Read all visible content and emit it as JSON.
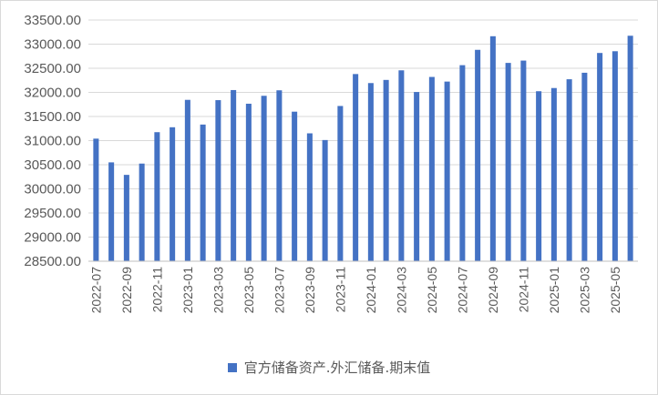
{
  "chart_data": {
    "type": "bar",
    "categories": [
      "2022-07",
      "2022-08",
      "2022-09",
      "2022-10",
      "2022-11",
      "2022-12",
      "2023-01",
      "2023-02",
      "2023-03",
      "2023-04",
      "2023-05",
      "2023-06",
      "2023-07",
      "2023-08",
      "2023-09",
      "2023-10",
      "2023-11",
      "2023-12",
      "2024-01",
      "2024-02",
      "2024-03",
      "2024-04",
      "2024-05",
      "2024-06",
      "2024-07",
      "2024-08",
      "2024-09",
      "2024-10",
      "2024-11",
      "2024-12",
      "2025-01",
      "2025-02",
      "2025-03",
      "2025-04",
      "2025-05",
      "2025-06"
    ],
    "x_tick_labels": [
      "2022-07",
      "2022-09",
      "2022-11",
      "2023-01",
      "2023-03",
      "2023-05",
      "2023-07",
      "2023-09",
      "2023-11",
      "2024-01",
      "2024-03",
      "2024-05",
      "2024-07",
      "2024-09",
      "2024-11",
      "2025-01",
      "2025-03",
      "2025-05"
    ],
    "series": [
      {
        "name": "官方储备资产:外汇储备:期末值",
        "color": "#4472c4",
        "values": [
          31041,
          30549,
          30290,
          30524,
          31175,
          31277,
          31845,
          31333,
          31839,
          32048,
          31765,
          31929,
          32043,
          31600,
          31151,
          31012,
          31718,
          32380,
          32193,
          32258,
          32457,
          32008,
          32320,
          32224,
          32564,
          32882,
          33164,
          32611,
          32659,
          32024,
          32090,
          32272,
          32407,
          32817,
          32853,
          33174
        ]
      }
    ],
    "ylim": [
      28500,
      33500
    ],
    "y_ticks": [
      "28500.00",
      "29000.00",
      "29500.00",
      "30000.00",
      "30500.00",
      "31000.00",
      "31500.00",
      "32000.00",
      "32500.00",
      "33000.00",
      "33500.00"
    ],
    "grid": true,
    "legend_position": "bottom"
  },
  "legend": {
    "label": "官方储备资产.外汇储备.期末值"
  }
}
